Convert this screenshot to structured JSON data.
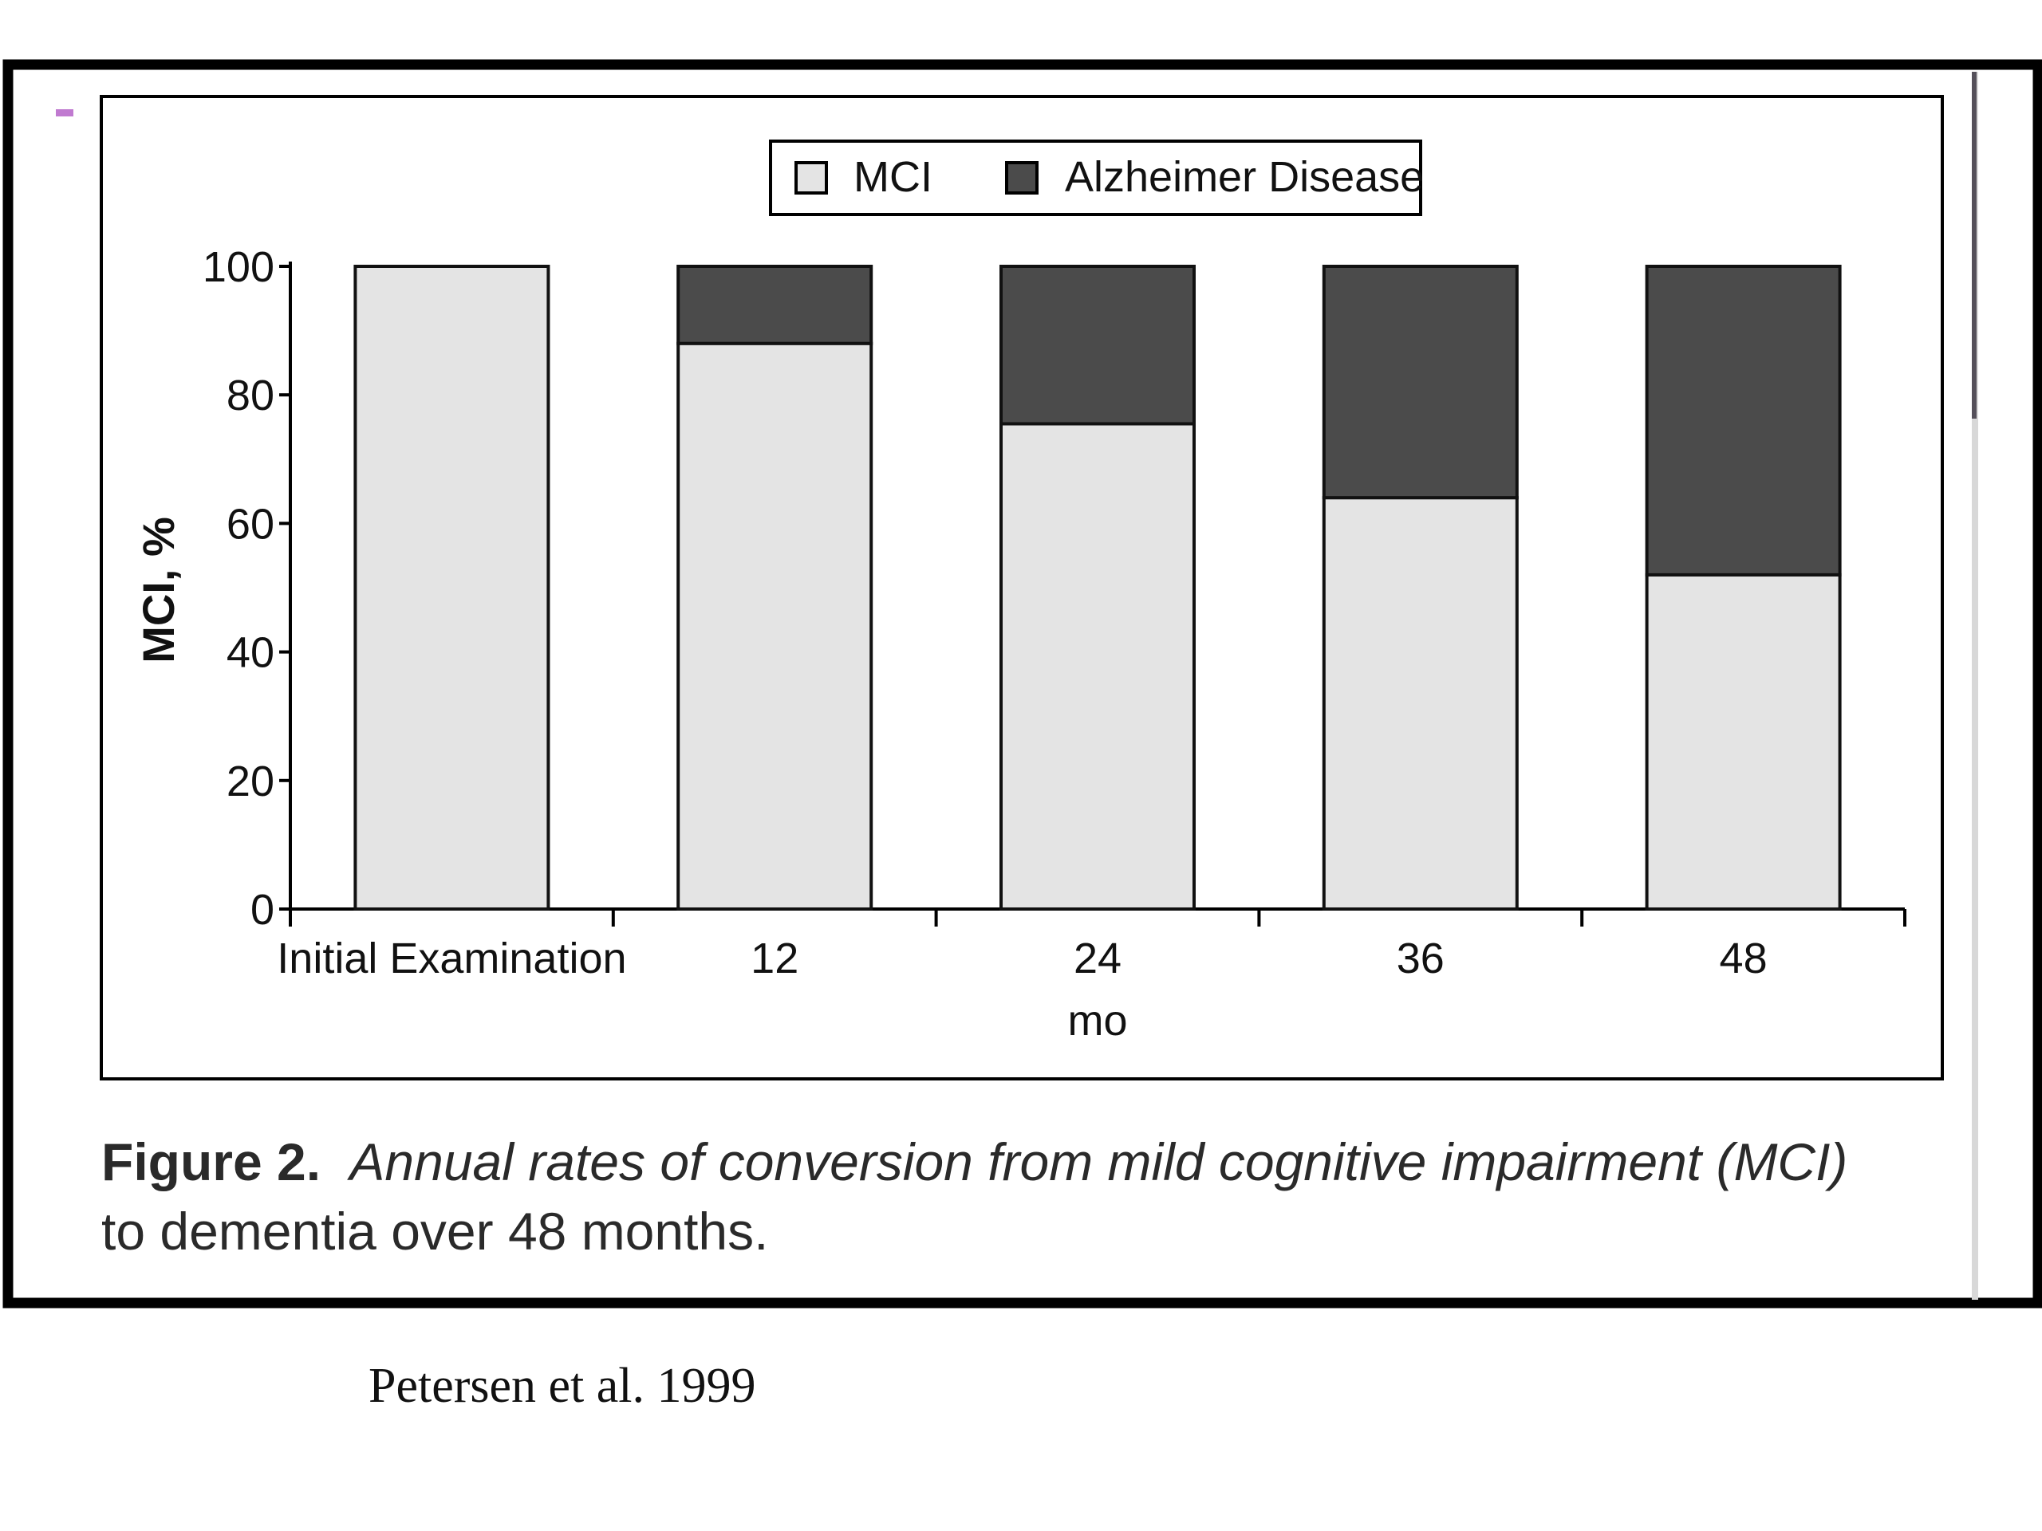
{
  "figure": {
    "caption_label": "Figure 2.",
    "caption_line1": "Annual rates of conversion from mild cognitive impairment (MCI)",
    "caption_line2": "to dementia over 48 months."
  },
  "citation": "Petersen et al. 1999",
  "chart_data": {
    "type": "bar",
    "stacked": true,
    "categories": [
      "Initial Examination",
      "12",
      "24",
      "36",
      "48"
    ],
    "series": [
      {
        "name": "MCI",
        "values": [
          100,
          88,
          75.5,
          64,
          52
        ],
        "color": "#e4e4e4"
      },
      {
        "name": "Alzheimer Disease",
        "values": [
          0,
          12,
          24.5,
          36,
          48
        ],
        "color": "#4b4b4b"
      }
    ],
    "xlabel": "mo",
    "ylabel": "MCI, %",
    "ylim": [
      0,
      100
    ],
    "yticks": [
      0,
      20,
      40,
      60,
      80,
      100
    ],
    "legend_position": "top-center",
    "grid": false
  },
  "colors": {
    "frame": "#000000",
    "bar_outline": "#111111",
    "accent_marker": "#c07ad0"
  }
}
